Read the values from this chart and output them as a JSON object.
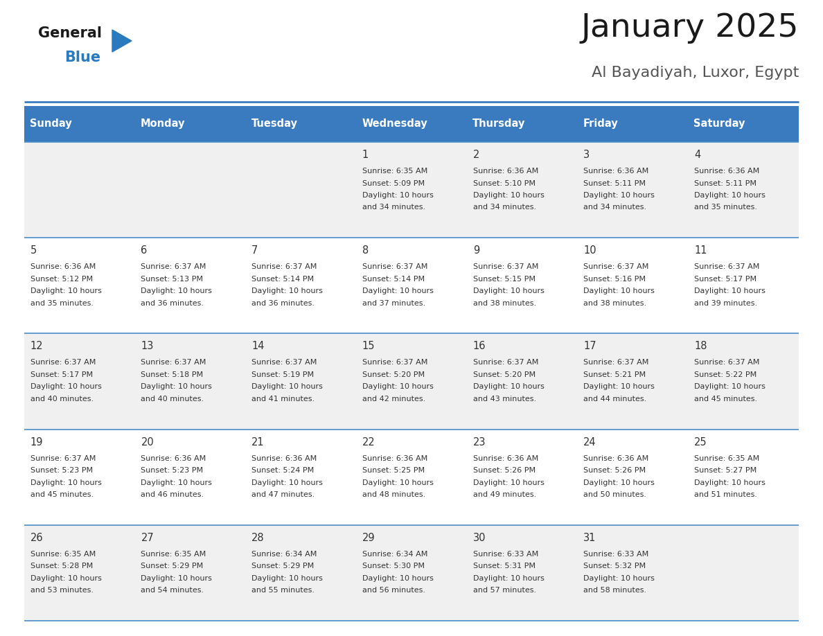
{
  "title": "January 2025",
  "subtitle": "Al Bayadiyah, Luxor, Egypt",
  "days_of_week": [
    "Sunday",
    "Monday",
    "Tuesday",
    "Wednesday",
    "Thursday",
    "Friday",
    "Saturday"
  ],
  "header_bg": "#3a7bbf",
  "header_text": "#ffffff",
  "row_bg_odd": "#f0f0f0",
  "row_bg_even": "#ffffff",
  "cell_border": "#4a8cc8",
  "day_num_color": "#333333",
  "text_color": "#333333",
  "title_color": "#1a1a1a",
  "subtitle_color": "#555555",
  "logo_general_color": "#1a1a1a",
  "logo_blue_color": "#2a7abf",
  "logo_triangle_color": "#2a7abf",
  "calendar_data": [
    {
      "day": 1,
      "col": 3,
      "row": 0,
      "sunrise": "6:35 AM",
      "sunset": "5:09 PM",
      "daylight": "10 hours and 34 minutes."
    },
    {
      "day": 2,
      "col": 4,
      "row": 0,
      "sunrise": "6:36 AM",
      "sunset": "5:10 PM",
      "daylight": "10 hours and 34 minutes."
    },
    {
      "day": 3,
      "col": 5,
      "row": 0,
      "sunrise": "6:36 AM",
      "sunset": "5:11 PM",
      "daylight": "10 hours and 34 minutes."
    },
    {
      "day": 4,
      "col": 6,
      "row": 0,
      "sunrise": "6:36 AM",
      "sunset": "5:11 PM",
      "daylight": "10 hours and 35 minutes."
    },
    {
      "day": 5,
      "col": 0,
      "row": 1,
      "sunrise": "6:36 AM",
      "sunset": "5:12 PM",
      "daylight": "10 hours and 35 minutes."
    },
    {
      "day": 6,
      "col": 1,
      "row": 1,
      "sunrise": "6:37 AM",
      "sunset": "5:13 PM",
      "daylight": "10 hours and 36 minutes."
    },
    {
      "day": 7,
      "col": 2,
      "row": 1,
      "sunrise": "6:37 AM",
      "sunset": "5:14 PM",
      "daylight": "10 hours and 36 minutes."
    },
    {
      "day": 8,
      "col": 3,
      "row": 1,
      "sunrise": "6:37 AM",
      "sunset": "5:14 PM",
      "daylight": "10 hours and 37 minutes."
    },
    {
      "day": 9,
      "col": 4,
      "row": 1,
      "sunrise": "6:37 AM",
      "sunset": "5:15 PM",
      "daylight": "10 hours and 38 minutes."
    },
    {
      "day": 10,
      "col": 5,
      "row": 1,
      "sunrise": "6:37 AM",
      "sunset": "5:16 PM",
      "daylight": "10 hours and 38 minutes."
    },
    {
      "day": 11,
      "col": 6,
      "row": 1,
      "sunrise": "6:37 AM",
      "sunset": "5:17 PM",
      "daylight": "10 hours and 39 minutes."
    },
    {
      "day": 12,
      "col": 0,
      "row": 2,
      "sunrise": "6:37 AM",
      "sunset": "5:17 PM",
      "daylight": "10 hours and 40 minutes."
    },
    {
      "day": 13,
      "col": 1,
      "row": 2,
      "sunrise": "6:37 AM",
      "sunset": "5:18 PM",
      "daylight": "10 hours and 40 minutes."
    },
    {
      "day": 14,
      "col": 2,
      "row": 2,
      "sunrise": "6:37 AM",
      "sunset": "5:19 PM",
      "daylight": "10 hours and 41 minutes."
    },
    {
      "day": 15,
      "col": 3,
      "row": 2,
      "sunrise": "6:37 AM",
      "sunset": "5:20 PM",
      "daylight": "10 hours and 42 minutes."
    },
    {
      "day": 16,
      "col": 4,
      "row": 2,
      "sunrise": "6:37 AM",
      "sunset": "5:20 PM",
      "daylight": "10 hours and 43 minutes."
    },
    {
      "day": 17,
      "col": 5,
      "row": 2,
      "sunrise": "6:37 AM",
      "sunset": "5:21 PM",
      "daylight": "10 hours and 44 minutes."
    },
    {
      "day": 18,
      "col": 6,
      "row": 2,
      "sunrise": "6:37 AM",
      "sunset": "5:22 PM",
      "daylight": "10 hours and 45 minutes."
    },
    {
      "day": 19,
      "col": 0,
      "row": 3,
      "sunrise": "6:37 AM",
      "sunset": "5:23 PM",
      "daylight": "10 hours and 45 minutes."
    },
    {
      "day": 20,
      "col": 1,
      "row": 3,
      "sunrise": "6:36 AM",
      "sunset": "5:23 PM",
      "daylight": "10 hours and 46 minutes."
    },
    {
      "day": 21,
      "col": 2,
      "row": 3,
      "sunrise": "6:36 AM",
      "sunset": "5:24 PM",
      "daylight": "10 hours and 47 minutes."
    },
    {
      "day": 22,
      "col": 3,
      "row": 3,
      "sunrise": "6:36 AM",
      "sunset": "5:25 PM",
      "daylight": "10 hours and 48 minutes."
    },
    {
      "day": 23,
      "col": 4,
      "row": 3,
      "sunrise": "6:36 AM",
      "sunset": "5:26 PM",
      "daylight": "10 hours and 49 minutes."
    },
    {
      "day": 24,
      "col": 5,
      "row": 3,
      "sunrise": "6:36 AM",
      "sunset": "5:26 PM",
      "daylight": "10 hours and 50 minutes."
    },
    {
      "day": 25,
      "col": 6,
      "row": 3,
      "sunrise": "6:35 AM",
      "sunset": "5:27 PM",
      "daylight": "10 hours and 51 minutes."
    },
    {
      "day": 26,
      "col": 0,
      "row": 4,
      "sunrise": "6:35 AM",
      "sunset": "5:28 PM",
      "daylight": "10 hours and 53 minutes."
    },
    {
      "day": 27,
      "col": 1,
      "row": 4,
      "sunrise": "6:35 AM",
      "sunset": "5:29 PM",
      "daylight": "10 hours and 54 minutes."
    },
    {
      "day": 28,
      "col": 2,
      "row": 4,
      "sunrise": "6:34 AM",
      "sunset": "5:29 PM",
      "daylight": "10 hours and 55 minutes."
    },
    {
      "day": 29,
      "col": 3,
      "row": 4,
      "sunrise": "6:34 AM",
      "sunset": "5:30 PM",
      "daylight": "10 hours and 56 minutes."
    },
    {
      "day": 30,
      "col": 4,
      "row": 4,
      "sunrise": "6:33 AM",
      "sunset": "5:31 PM",
      "daylight": "10 hours and 57 minutes."
    },
    {
      "day": 31,
      "col": 5,
      "row": 4,
      "sunrise": "6:33 AM",
      "sunset": "5:32 PM",
      "daylight": "10 hours and 58 minutes."
    }
  ]
}
